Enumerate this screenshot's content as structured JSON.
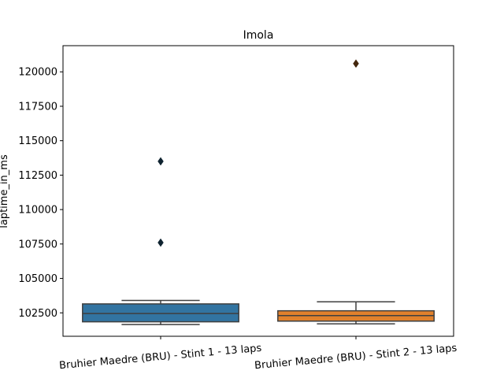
{
  "chart_data": {
    "type": "box",
    "title": "Imola",
    "xlabel": "",
    "ylabel": "laptime_in_ms",
    "ylim": [
      100800,
      121900
    ],
    "yticks": [
      102500,
      105000,
      107500,
      110000,
      112500,
      115000,
      117500,
      120000
    ],
    "ytick_labels": [
      "102500",
      "105000",
      "107500",
      "110000",
      "112500",
      "115000",
      "117500",
      "120000"
    ],
    "categories": [
      "Bruhier Maedre (BRU) - Stint 1 - 13 laps",
      "Bruhier Maedre (BRU) - Stint 2 - 13 laps"
    ],
    "series": [
      {
        "color": "#3274a1",
        "whisker_low": 101650,
        "q1": 101850,
        "median": 102450,
        "q3": 103150,
        "whisker_high": 103400,
        "outliers": [
          107600,
          113500
        ]
      },
      {
        "color": "#e1812c",
        "whisker_low": 101700,
        "q1": 101900,
        "median": 102300,
        "q3": 102650,
        "whisker_high": 103300,
        "outliers": [
          120600
        ]
      }
    ]
  }
}
